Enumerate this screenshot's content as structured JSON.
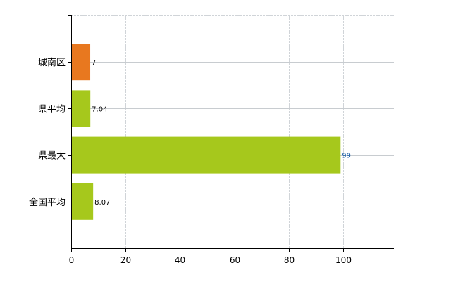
{
  "chart_data": {
    "type": "bar",
    "orientation": "horizontal",
    "categories": [
      "城南区",
      "県平均",
      "県最大",
      "全国平均"
    ],
    "values": [
      7,
      7.04,
      99,
      8.07
    ],
    "data_labels": [
      "7",
      "7.04",
      "99",
      "8.07"
    ],
    "colors": [
      "#e8781f",
      "#a6c81c",
      "#a6c81c",
      "#a6c81c"
    ],
    "xlim": [
      0,
      118.6
    ],
    "xticks": [
      0,
      20,
      40,
      60,
      80,
      100
    ],
    "xtick_labels": [
      "0",
      "20",
      "40",
      "60",
      "80",
      "100"
    ],
    "title": "",
    "xlabel": "",
    "ylabel": "",
    "grid": true,
    "legend": "none",
    "label_color": "#000000",
    "highlight_label_color": "#1a5fa8"
  }
}
